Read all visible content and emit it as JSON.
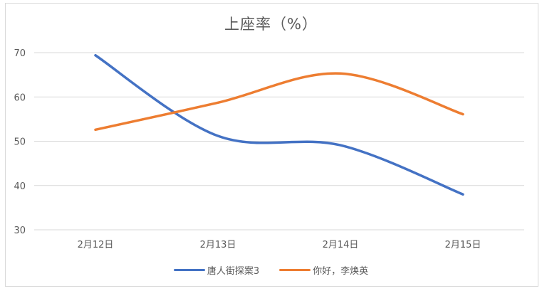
{
  "chart_data": {
    "type": "line",
    "title": "上座率（%）",
    "xlabel": "",
    "ylabel": "",
    "categories": [
      "2月12日",
      "2月13日",
      "2月14日",
      "2月15日"
    ],
    "series": [
      {
        "name": "唐人街探案3",
        "color": "#4472C4",
        "values": [
          69.4,
          51.2,
          49.1,
          38.0
        ]
      },
      {
        "name": "你好，李焕英",
        "color": "#ED7D31",
        "values": [
          52.6,
          58.7,
          65.3,
          56.1
        ]
      }
    ],
    "ylim": [
      30,
      70
    ],
    "yticks": [
      30,
      40,
      50,
      60,
      70
    ],
    "grid": true,
    "smooth": true,
    "legend_position": "bottom"
  },
  "legend": {
    "items": [
      {
        "label": "唐人街探案3",
        "color": "#4472C4"
      },
      {
        "label": "你好，李焕英",
        "color": "#ED7D31"
      }
    ]
  }
}
